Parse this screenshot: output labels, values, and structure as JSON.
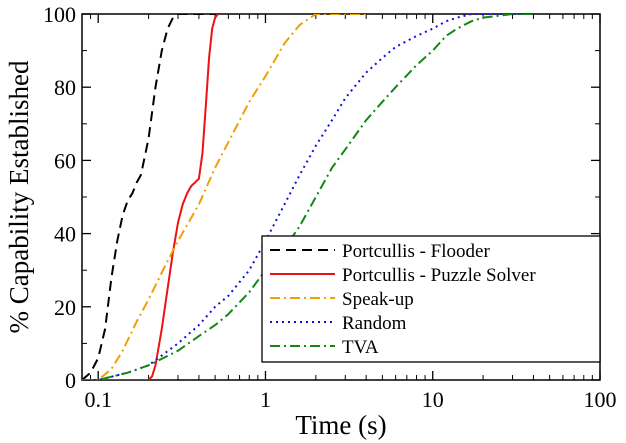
{
  "chart_data": {
    "type": "line",
    "title": "",
    "xlabel": "Time (s)",
    "ylabel": "% Capability Established",
    "xscale": "log",
    "xlim": [
      0.08,
      100
    ],
    "ylim": [
      0,
      100
    ],
    "xticks": [
      0.1,
      1,
      10,
      100
    ],
    "xtick_labels": [
      "0.1",
      "1",
      "10",
      "100"
    ],
    "yticks": [
      0,
      20,
      40,
      60,
      80,
      100
    ],
    "ytick_labels": [
      "0",
      "20",
      "40",
      "60",
      "80",
      "100"
    ],
    "grid": false,
    "legend_position": "lower-right",
    "series": [
      {
        "name": "Portcullis - Flooder",
        "color": "#000000",
        "dash": "dashed",
        "x": [
          0.08,
          0.09,
          0.1,
          0.11,
          0.12,
          0.13,
          0.14,
          0.15,
          0.16,
          0.17,
          0.18,
          0.2,
          0.22,
          0.24,
          0.26,
          0.28,
          0.3,
          0.35,
          0.4,
          0.45,
          0.5
        ],
        "y": [
          0,
          2,
          6,
          14,
          28,
          38,
          45,
          49,
          51,
          54,
          56,
          66,
          80,
          90,
          96,
          99,
          100,
          100,
          100,
          100,
          100
        ]
      },
      {
        "name": "Portcullis - Puzzle Solver",
        "color": "#ee1111",
        "dash": "solid",
        "x": [
          0.08,
          0.15,
          0.2,
          0.21,
          0.22,
          0.24,
          0.26,
          0.28,
          0.3,
          0.32,
          0.34,
          0.36,
          0.38,
          0.4,
          0.42,
          0.44,
          0.46,
          0.48,
          0.5,
          0.52
        ],
        "y": [
          0,
          0,
          0,
          1,
          4,
          14,
          25,
          35,
          43,
          48,
          51,
          53,
          54,
          55,
          62,
          75,
          88,
          96,
          99,
          100
        ]
      },
      {
        "name": "Speak-up",
        "color": "#f0a000",
        "dash": "dashdot",
        "x": [
          0.08,
          0.1,
          0.12,
          0.14,
          0.17,
          0.2,
          0.25,
          0.3,
          0.4,
          0.5,
          0.6,
          0.8,
          1.0,
          1.3,
          1.6,
          2.0,
          2.5,
          3.0,
          4.0
        ],
        "y": [
          0,
          0,
          3,
          8,
          16,
          22,
          31,
          38,
          48,
          58,
          65,
          76,
          83,
          92,
          97,
          100,
          100,
          100,
          100
        ]
      },
      {
        "name": "Random",
        "color": "#1010dd",
        "dash": "dotted",
        "x": [
          0.08,
          0.1,
          0.15,
          0.2,
          0.3,
          0.4,
          0.5,
          0.6,
          0.8,
          1.0,
          1.3,
          1.6,
          2.0,
          2.5,
          3.0,
          4.0,
          5.0,
          6.0,
          8.0,
          10,
          12,
          14,
          17,
          20,
          30,
          40
        ],
        "y": [
          0,
          0,
          2,
          4,
          10,
          15,
          20,
          23,
          30,
          38,
          48,
          56,
          64,
          71,
          77,
          84,
          88,
          91,
          94,
          96,
          98,
          99,
          100,
          100,
          100,
          100
        ]
      },
      {
        "name": "TVA",
        "color": "#118811",
        "dash": "dashdot",
        "x": [
          0.08,
          0.1,
          0.15,
          0.2,
          0.3,
          0.4,
          0.5,
          0.6,
          0.8,
          1.0,
          1.3,
          1.6,
          2.0,
          2.5,
          3.0,
          4.0,
          5.0,
          6.0,
          8.0,
          10,
          12,
          14,
          17,
          20,
          30,
          40
        ],
        "y": [
          0,
          0,
          2,
          4,
          8,
          12,
          15,
          18,
          24,
          30,
          36,
          42,
          50,
          58,
          63,
          71,
          76,
          80,
          86,
          90,
          94,
          96,
          98,
          99,
          100,
          100
        ]
      }
    ]
  }
}
